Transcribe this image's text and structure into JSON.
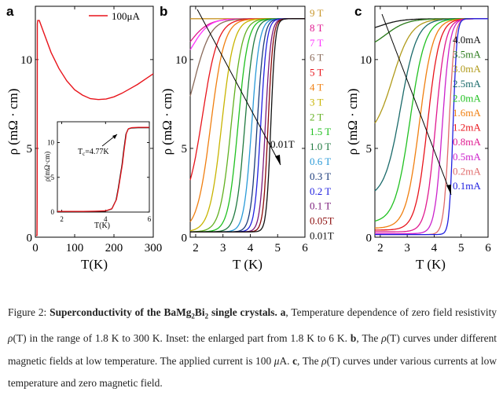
{
  "figure": {
    "panel_a": {
      "letter": "a",
      "legend": "100μA",
      "inset_tc": "T",
      "inset_tc_sub": "c",
      "inset_tc_value": "=4.77K",
      "inset_ylabel": "ρ(mΩ·cm)",
      "inset_xlabel": "T(K)"
    },
    "panel_b": {
      "letter": "b",
      "arrow_label": "0.01T",
      "legend": [
        {
          "label": "9 T",
          "color": "#c8962a"
        },
        {
          "label": "8 T",
          "color": "#e0198f"
        },
        {
          "label": "7 T",
          "color": "#ff33ff"
        },
        {
          "label": "6 T",
          "color": "#8a6a5a"
        },
        {
          "label": "5 T",
          "color": "#e8141b"
        },
        {
          "label": "4 T",
          "color": "#f07f10"
        },
        {
          "label": "3 T",
          "color": "#c8b400"
        },
        {
          "label": "2 T",
          "color": "#62b020"
        },
        {
          "label": "1.5 T",
          "color": "#20c020"
        },
        {
          "label": "1.0 T",
          "color": "#207a40"
        },
        {
          "label": "0.6 T",
          "color": "#2a9ad8"
        },
        {
          "label": "0.3 T",
          "color": "#1a3a7a"
        },
        {
          "label": "0.2 T",
          "color": "#2020e0"
        },
        {
          "label": "0.1 T",
          "color": "#7a1a7a"
        },
        {
          "label": "0.05T",
          "color": "#8a0a0a"
        },
        {
          "label": "0.01T",
          "color": "#111111"
        }
      ]
    },
    "panel_c": {
      "letter": "c",
      "legend": [
        {
          "label": "4.0mA",
          "color": "#111111"
        },
        {
          "label": "3.5mA",
          "color": "#2a7a1a"
        },
        {
          "label": "3.0mA",
          "color": "#b09a1a"
        },
        {
          "label": "2.5mA",
          "color": "#1a6a6a"
        },
        {
          "label": "2.0mA",
          "color": "#20c020"
        },
        {
          "label": "1.6mA",
          "color": "#f07f10"
        },
        {
          "label": "1.2mA",
          "color": "#e8141b"
        },
        {
          "label": "0.8mA",
          "color": "#e0198f"
        },
        {
          "label": "0.5mA",
          "color": "#cc22cc"
        },
        {
          "label": "0.2mA",
          "color": "#e06a6a"
        },
        {
          "label": "0.1mA",
          "color": "#2020e0"
        }
      ]
    }
  },
  "chart_data": [
    {
      "type": "line",
      "panel": "a",
      "xlabel": "T(K)",
      "ylabel": "ρ (mΩ · cm)",
      "xlim": [
        0,
        300
      ],
      "ylim": [
        0,
        13
      ],
      "xticks": [
        "0",
        "100",
        "200",
        "300"
      ],
      "yticks": [
        "0",
        "5",
        "10"
      ],
      "series": [
        {
          "name": "100μA",
          "color": "#e8141b",
          "x": [
            1.8,
            3,
            4.3,
            4.6,
            4.77,
            5,
            6,
            10,
            20,
            40,
            60,
            80,
            100,
            120,
            140,
            160,
            180,
            200,
            220,
            240,
            260,
            280,
            300
          ],
          "y": [
            0.1,
            0.1,
            0.1,
            2.0,
            6.0,
            12.0,
            12.2,
            12.2,
            11.6,
            10.4,
            9.5,
            8.8,
            8.3,
            8.0,
            7.8,
            7.75,
            7.78,
            7.9,
            8.1,
            8.35,
            8.6,
            8.9,
            9.2
          ]
        }
      ]
    },
    {
      "type": "line",
      "panel": "a-inset",
      "xlabel": "T(K)",
      "ylabel": "ρ(mΩ·cm)",
      "xlim": [
        1.8,
        6
      ],
      "ylim": [
        0,
        13
      ],
      "xticks": [
        "2",
        "4",
        "6"
      ],
      "yticks": [
        "0",
        "5",
        "10"
      ],
      "series": [
        {
          "name": "100μA",
          "color": "#e8141b",
          "x": [
            1.8,
            2.5,
            3,
            3.5,
            4,
            4.3,
            4.5,
            4.6,
            4.7,
            4.77,
            4.85,
            4.95,
            5.05,
            5.2,
            5.5,
            6
          ],
          "y": [
            0.1,
            0.1,
            0.1,
            0.12,
            0.18,
            0.5,
            1.8,
            3.5,
            5.5,
            6.8,
            9.0,
            11.3,
            12.0,
            12.15,
            12.2,
            12.2
          ]
        }
      ]
    },
    {
      "type": "line",
      "panel": "b",
      "xlabel": "T (K)",
      "ylabel": "ρ (mΩ · cm)",
      "xlim": [
        1.8,
        6
      ],
      "ylim": [
        0,
        13
      ],
      "xticks": [
        "2",
        "3",
        "4",
        "5",
        "6"
      ],
      "yticks": [
        "0",
        "5",
        "10"
      ],
      "series": [
        {
          "name": "9 T",
          "tc": 1.5,
          "low": 12.3,
          "width": 0.35
        },
        {
          "name": "8 T",
          "tc": 1.75,
          "low": 9.5,
          "width": 0.35
        },
        {
          "name": "7 T",
          "tc": 1.9,
          "low": 9.3,
          "width": 0.3
        },
        {
          "name": "6 T",
          "tc": 1.95,
          "low": 5.3,
          "width": 0.3
        },
        {
          "name": "5 T",
          "tc": 2.25,
          "low": 1.4,
          "width": 0.28
        },
        {
          "name": "4 T",
          "tc": 2.55,
          "low": 0.3,
          "width": 0.25
        },
        {
          "name": "3 T",
          "tc": 2.95,
          "low": 0.3,
          "width": 0.22
        },
        {
          "name": "2 T",
          "tc": 3.3,
          "low": 0.3,
          "width": 0.2
        },
        {
          "name": "1.5 T",
          "tc": 3.55,
          "low": 0.3,
          "width": 0.18
        },
        {
          "name": "1.0 T",
          "tc": 3.8,
          "low": 0.3,
          "width": 0.16
        },
        {
          "name": "0.6 T",
          "tc": 4.05,
          "low": 0.3,
          "width": 0.14
        },
        {
          "name": "0.3 T",
          "tc": 4.25,
          "low": 0.3,
          "width": 0.12
        },
        {
          "name": "0.2 T",
          "tc": 4.38,
          "low": 0.3,
          "width": 0.11
        },
        {
          "name": "0.1 T",
          "tc": 4.55,
          "low": 0.3,
          "width": 0.1
        },
        {
          "name": "0.05T",
          "tc": 4.65,
          "low": 0.3,
          "width": 0.09
        },
        {
          "name": "0.01T",
          "tc": 4.75,
          "low": 0.3,
          "width": 0.08
        }
      ]
    },
    {
      "type": "line",
      "panel": "c",
      "xlabel": "T (K)",
      "ylabel": "ρ (mΩ · cm)",
      "xlim": [
        1.8,
        6
      ],
      "ylim": [
        0,
        13
      ],
      "xticks": [
        "2",
        "3",
        "4",
        "5",
        "6"
      ],
      "yticks": [
        "0",
        "5",
        "10"
      ],
      "series": [
        {
          "name": "4.0mA",
          "tc": 2.0,
          "low": 11.5,
          "width": 0.4
        },
        {
          "name": "3.5mA",
          "tc": 2.2,
          "low": 10.5,
          "width": 0.4
        },
        {
          "name": "3.0mA",
          "tc": 2.45,
          "low": 5.5,
          "width": 0.35
        },
        {
          "name": "2.5mA",
          "tc": 2.75,
          "low": 2.2,
          "width": 0.3
        },
        {
          "name": "2.0mA",
          "tc": 3.1,
          "low": 0.8,
          "width": 0.28
        },
        {
          "name": "1.6mA",
          "tc": 3.45,
          "low": 0.5,
          "width": 0.25
        },
        {
          "name": "1.2mA",
          "tc": 3.75,
          "low": 0.4,
          "width": 0.22
        },
        {
          "name": "0.8mA",
          "tc": 4.05,
          "low": 0.3,
          "width": 0.18
        },
        {
          "name": "0.5mA",
          "tc": 4.3,
          "low": 0.2,
          "width": 0.14
        },
        {
          "name": "0.2mA",
          "tc": 4.55,
          "low": 0.15,
          "width": 0.1
        },
        {
          "name": "0.1mA",
          "tc": 4.7,
          "low": 0.15,
          "width": 0.07
        }
      ]
    }
  ],
  "caption": {
    "prefix": "Figure 2: ",
    "title_a": "Superconductivity of the BaMg",
    "title_sub1": "2",
    "title_b": "Bi",
    "title_sub2": "2",
    "title_c": " single crystals.",
    "a_letter": "a",
    "a_text1": ", Temperature dependence of zero field resistivity ",
    "rho": "ρ",
    "a_text2": "(T) in the range of 1.8 K to 300 K. Inset: the enlarged part from 1.8 K to 6 K. ",
    "b_letter": "b",
    "b_text1": ", The ",
    "b_text2": "(T) curves under different magnetic fields at low temperature. The applied current is 100 ",
    "mu": "μ",
    "b_text3": "A. ",
    "c_letter": "c",
    "c_text1": ", The ",
    "c_text2": "(T) curves under various currents at low temperature and zero magnetic field."
  }
}
